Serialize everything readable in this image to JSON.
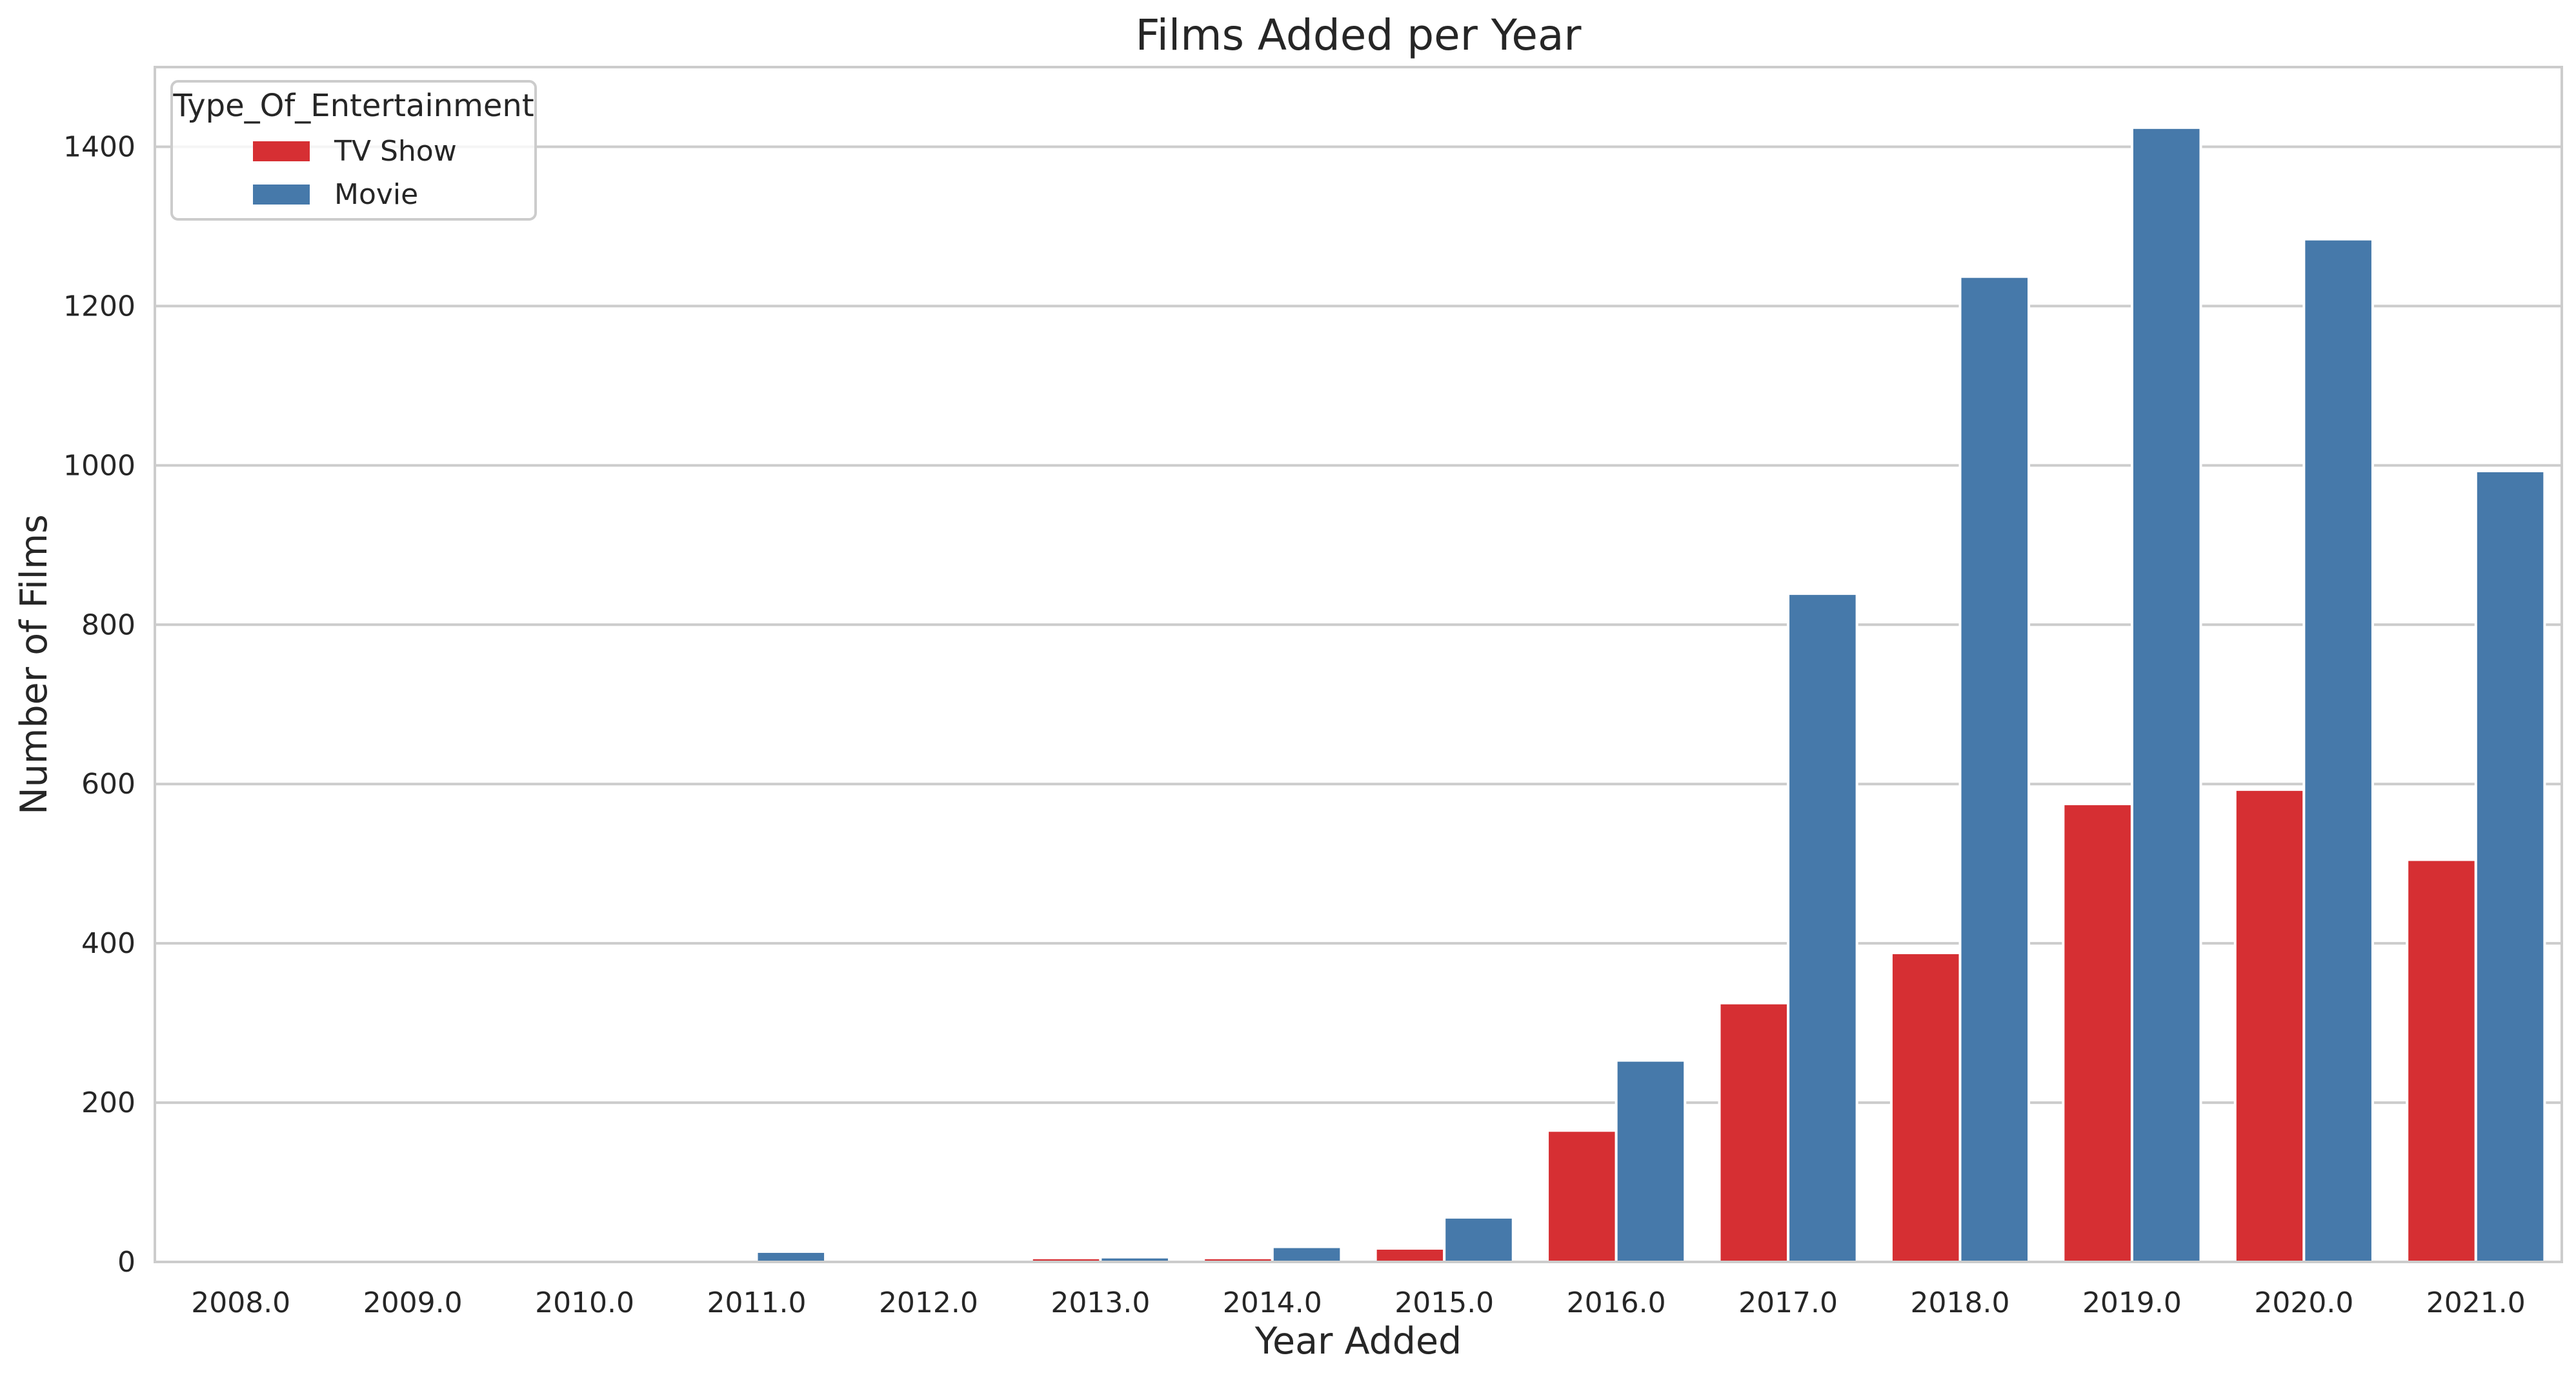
{
  "chart_data": {
    "type": "bar",
    "title": "Films Added per Year",
    "xlabel": "Year Added",
    "ylabel": "Number of Films",
    "categories": [
      "2008.0",
      "2009.0",
      "2010.0",
      "2011.0",
      "2012.0",
      "2013.0",
      "2014.0",
      "2015.0",
      "2016.0",
      "2017.0",
      "2018.0",
      "2019.0",
      "2020.0",
      "2021.0"
    ],
    "series": [
      {
        "name": "TV Show",
        "color": "#d62f33",
        "values": [
          1,
          1,
          1,
          1,
          1,
          5,
          5,
          17,
          165,
          325,
          388,
          575,
          593,
          505
        ]
      },
      {
        "name": "Movie",
        "color": "#4679aa",
        "values": [
          1,
          2,
          1,
          13,
          3,
          6,
          19,
          56,
          253,
          839,
          1237,
          1424,
          1284,
          993
        ]
      }
    ],
    "yticks": [
      "0",
      "200",
      "400",
      "600",
      "800",
      "1000",
      "1200",
      "1400"
    ],
    "ylim": [
      0,
      1500
    ],
    "grid": "horizontal",
    "legend": {
      "title": "Type_Of_Entertainment",
      "placement": "top-left"
    }
  }
}
